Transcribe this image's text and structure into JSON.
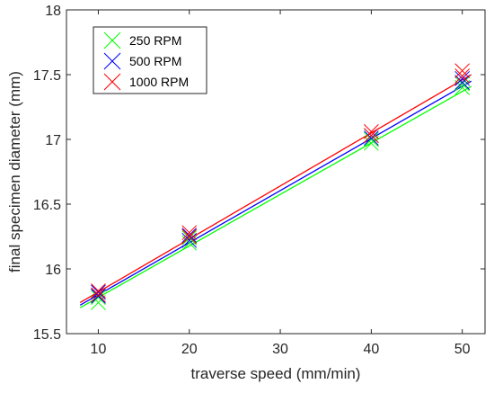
{
  "chart_data": {
    "type": "scatter",
    "title": "",
    "xlabel": "traverse speed (mm/min)",
    "ylabel": "final specimen diameter (mm)",
    "xlim": [
      6.5,
      52.5
    ],
    "ylim": [
      15.5,
      18
    ],
    "xticks": [
      10,
      20,
      30,
      40,
      50
    ],
    "xtick_labels": [
      "10",
      "20",
      "30",
      "40",
      "50"
    ],
    "yticks": [
      15.5,
      16,
      16.5,
      17,
      17.5,
      18
    ],
    "ytick_labels": [
      "15.5",
      "16",
      "16.5",
      "17",
      "17.5",
      "18"
    ],
    "grid": false,
    "legend_position": "top-left",
    "marker": "x",
    "series": [
      {
        "name": "250 RPM",
        "color": "#00ff00",
        "points": [
          {
            "x": 10,
            "y": 15.74
          },
          {
            "x": 10,
            "y": 15.78
          },
          {
            "x": 20,
            "y": 16.2
          },
          {
            "x": 20,
            "y": 16.24
          },
          {
            "x": 40,
            "y": 16.97
          },
          {
            "x": 40,
            "y": 17.0
          },
          {
            "x": 50,
            "y": 17.4
          },
          {
            "x": 50,
            "y": 17.43
          }
        ],
        "fit": {
          "x": [
            8,
            51
          ],
          "y": [
            15.7,
            17.41
          ]
        }
      },
      {
        "name": "500 RPM",
        "color": "#0000ff",
        "points": [
          {
            "x": 10,
            "y": 15.79
          },
          {
            "x": 10,
            "y": 15.82
          },
          {
            "x": 20,
            "y": 16.22
          },
          {
            "x": 20,
            "y": 16.26
          },
          {
            "x": 40,
            "y": 17.01
          },
          {
            "x": 40,
            "y": 17.03
          },
          {
            "x": 50,
            "y": 17.44
          },
          {
            "x": 50,
            "y": 17.47
          }
        ],
        "fit": {
          "x": [
            8,
            51
          ],
          "y": [
            15.72,
            17.45
          ]
        }
      },
      {
        "name": "1000 RPM",
        "color": "#ff0000",
        "points": [
          {
            "x": 10,
            "y": 15.8
          },
          {
            "x": 10,
            "y": 15.83
          },
          {
            "x": 20,
            "y": 16.25
          },
          {
            "x": 20,
            "y": 16.28
          },
          {
            "x": 40,
            "y": 17.03
          },
          {
            "x": 40,
            "y": 17.06
          },
          {
            "x": 50,
            "y": 17.49
          },
          {
            "x": 50,
            "y": 17.53
          }
        ],
        "fit": {
          "x": [
            8,
            51
          ],
          "y": [
            15.74,
            17.5
          ]
        }
      }
    ]
  }
}
